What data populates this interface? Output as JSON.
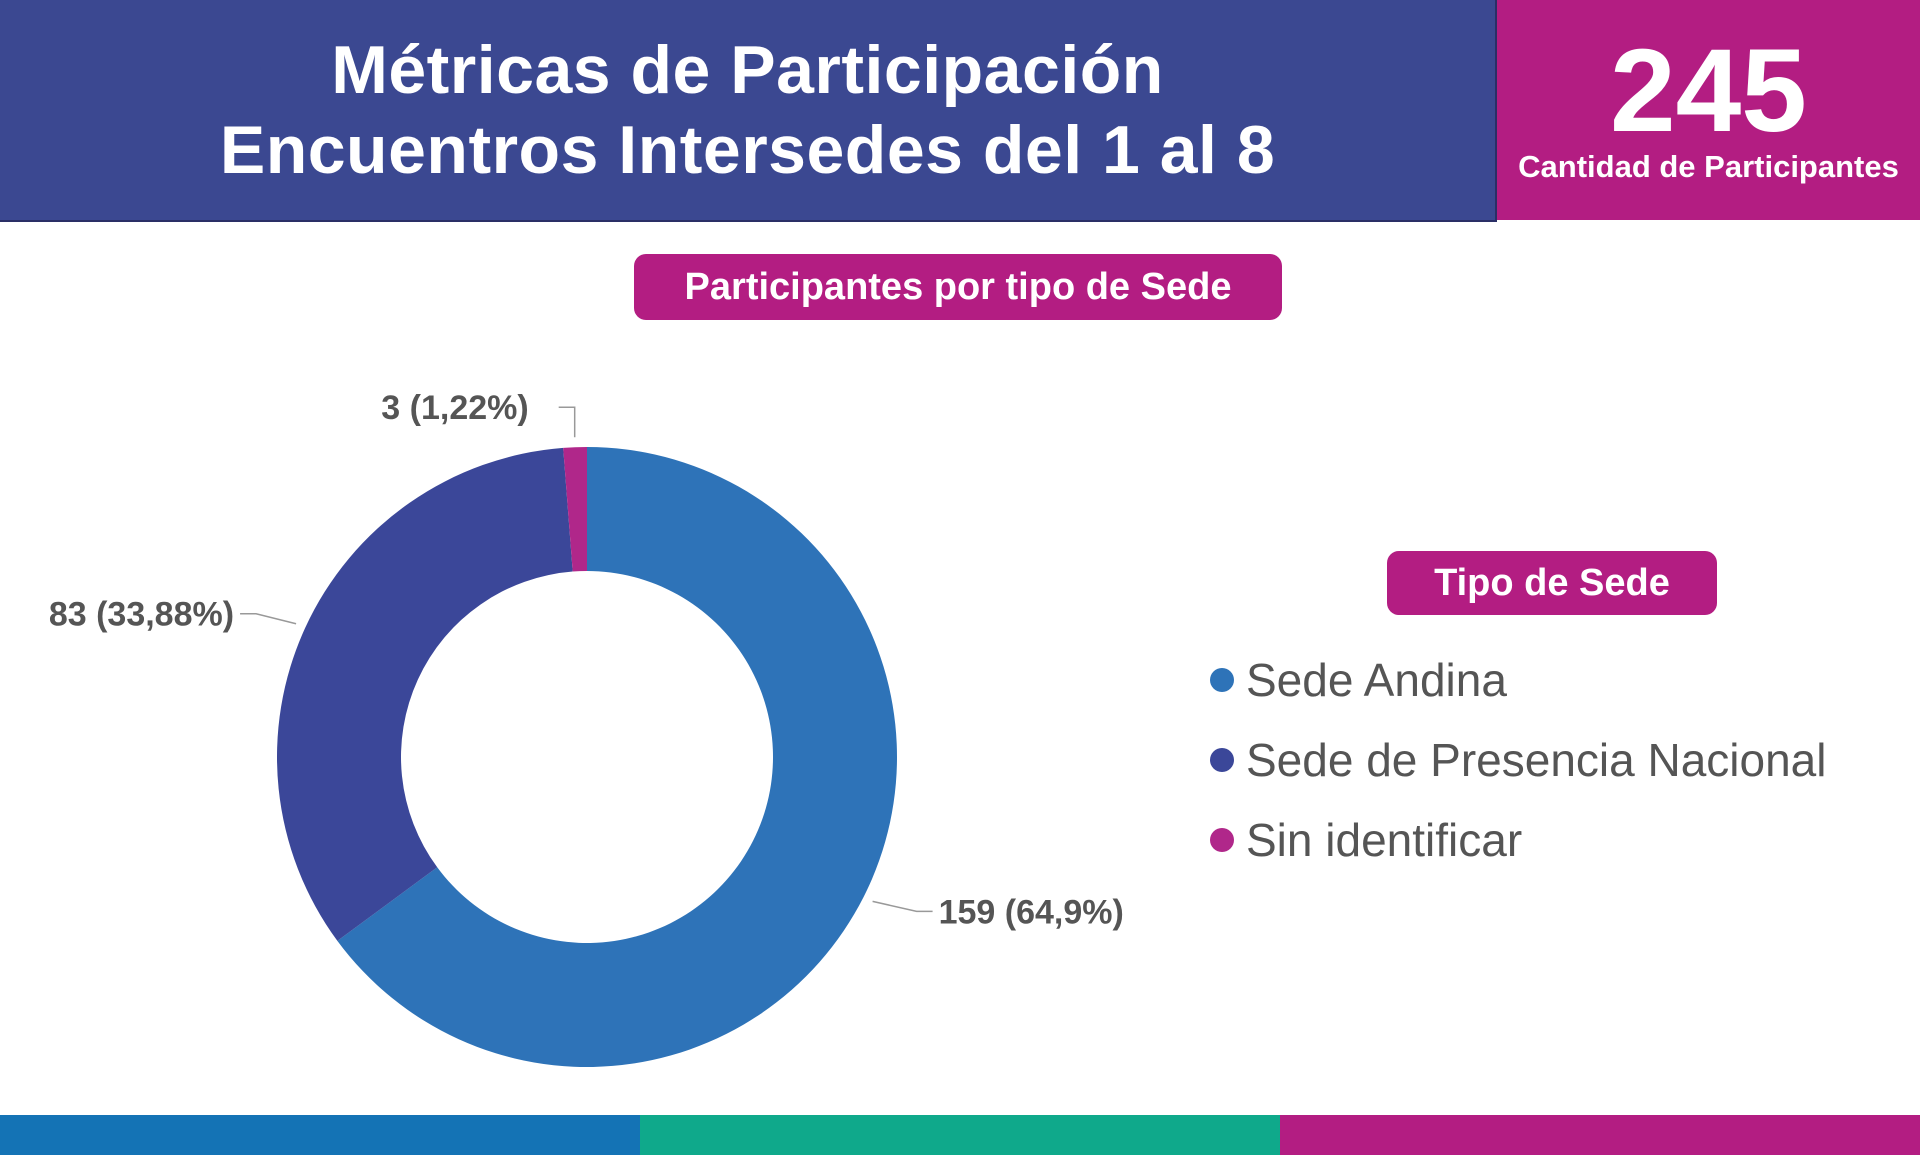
{
  "header": {
    "title_line1": "Métricas de Participación",
    "title_line2": "Encuentros Intersedes del 1 al 8",
    "total_value": "245",
    "total_label": "Cantidad de Participantes"
  },
  "chart_title": "Participantes por tipo de Sede",
  "legend": {
    "title": "Tipo de Sede",
    "items": [
      {
        "label": "Sede Andina",
        "color": "#2e73b8"
      },
      {
        "label": "Sede de Presencia Nacional",
        "color": "#3b4799"
      },
      {
        "label": "Sin identificar",
        "color": "#b0278a"
      }
    ]
  },
  "colors": {
    "header_bg": "#3b4891",
    "accent": "#b31d82",
    "footer": [
      "#1473b5",
      "#0fa98b",
      "#b31d82"
    ]
  },
  "chart_data": {
    "type": "pie",
    "variant": "donut",
    "title": "Participantes por tipo de Sede",
    "categories": [
      "Sede Andina",
      "Sede de Presencia Nacional",
      "Sin identificar"
    ],
    "values": [
      159,
      83,
      3
    ],
    "percentages": [
      "64,9%",
      "33,88%",
      "1,22%"
    ],
    "data_labels": [
      "159 (64,9%)",
      "83 (33,88%)",
      "3 (1,22%)"
    ],
    "colors": [
      "#2e73b8",
      "#3b4799",
      "#b0278a"
    ],
    "legend_position": "right"
  }
}
